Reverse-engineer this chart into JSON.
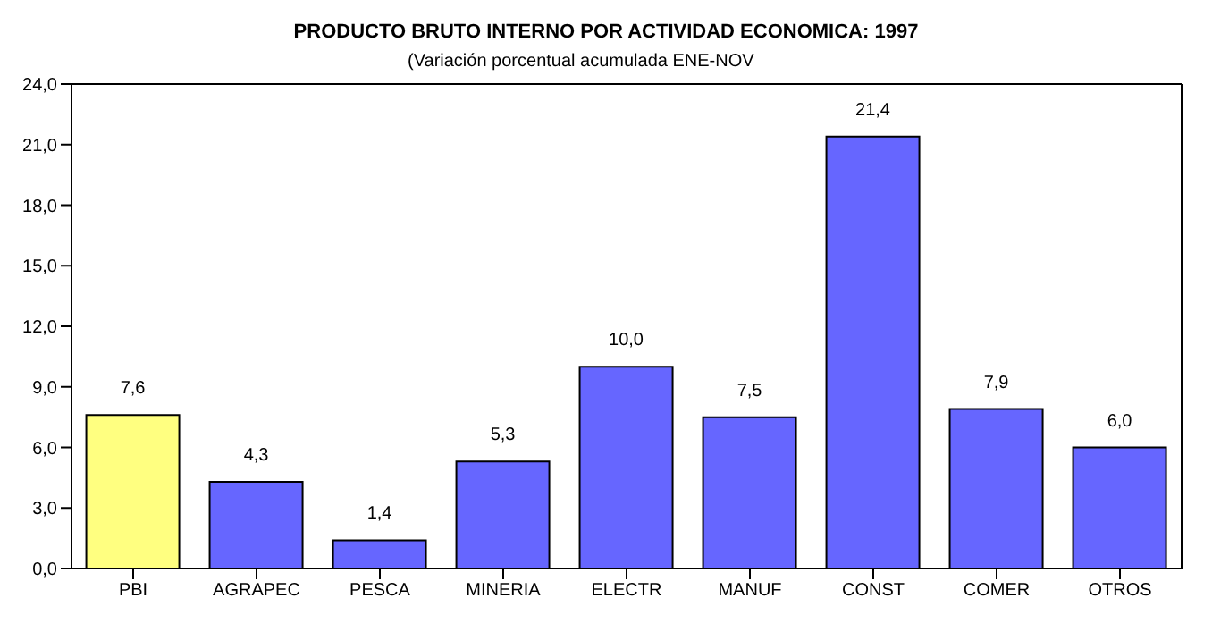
{
  "chart_data": {
    "type": "bar",
    "title": "PRODUCTO BRUTO INTERNO POR ACTIVIDAD ECONOMICA:  1997",
    "subtitle": "(Variación porcentual acumulada ENE-NOV",
    "categories": [
      "PBI",
      "AGRAPEC",
      "PESCA",
      "MINERIA",
      "ELECTR",
      "MANUF",
      "CONST",
      "COMER",
      "OTROS"
    ],
    "values": [
      7.6,
      4.3,
      1.4,
      5.3,
      10.0,
      7.5,
      21.4,
      7.9,
      6.0
    ],
    "value_labels": [
      "7,6",
      "4,3",
      "1,4",
      "5,3",
      "10,0",
      "7,5",
      "21,4",
      "7,9",
      "6,0"
    ],
    "colors": [
      "#ffff80",
      "#6666ff",
      "#6666ff",
      "#6666ff",
      "#6666ff",
      "#6666ff",
      "#6666ff",
      "#6666ff",
      "#6666ff"
    ],
    "ylim": [
      0,
      24
    ],
    "yticks": [
      {
        "value": 0,
        "label": "0,0"
      },
      {
        "value": 3,
        "label": "3,0"
      },
      {
        "value": 6,
        "label": "6,0"
      },
      {
        "value": 9,
        "label": "9,0"
      },
      {
        "value": 12,
        "label": "12,0"
      },
      {
        "value": 15,
        "label": "15,0"
      },
      {
        "value": 18,
        "label": "18,0"
      },
      {
        "value": 21,
        "label": "21,0"
      },
      {
        "value": 24,
        "label": "24,0"
      }
    ],
    "grid": false,
    "legend": false
  }
}
